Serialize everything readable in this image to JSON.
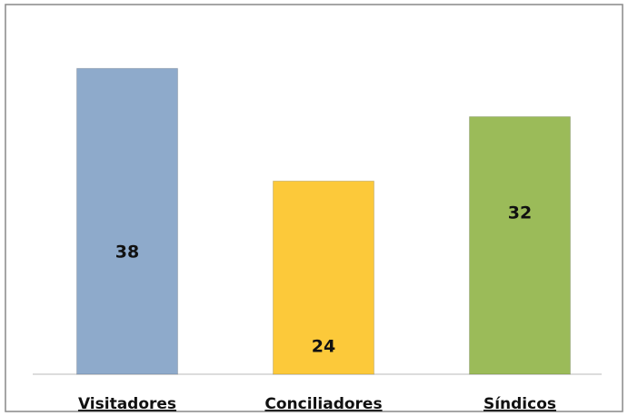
{
  "chart_data": {
    "type": "bar",
    "categories": [
      "Visitadores",
      "Conciliadores",
      "Síndicos"
    ],
    "values": [
      38,
      24,
      32
    ],
    "colors": [
      "#8eaacb",
      "#fcc93a",
      "#9bbb59"
    ],
    "ylim": [
      0,
      40
    ]
  }
}
